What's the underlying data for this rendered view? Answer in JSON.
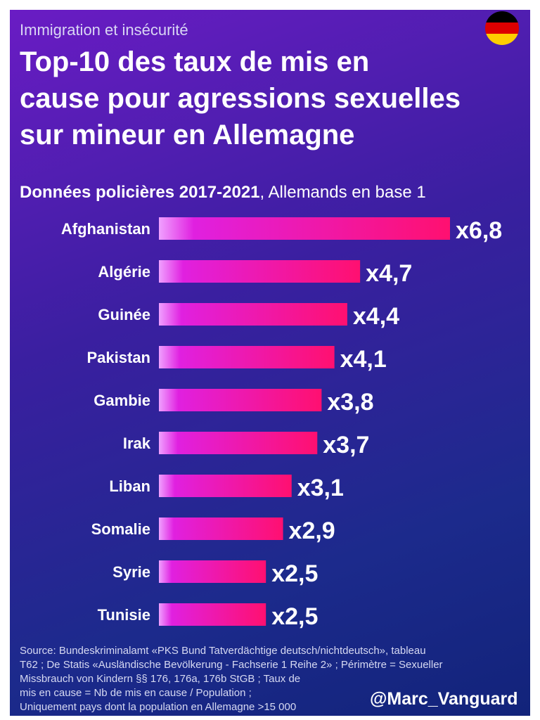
{
  "header": {
    "subtitle": "Immigration et insécurité",
    "title_lines": [
      "Top-10 des taux de mis en",
      "cause pour agressions sexuelles",
      "sur mineur en Allemagne"
    ],
    "data_label_bold": "Données policières 2017-2021",
    "data_label_rest": ", Allemands en base 1",
    "flag_icon": "germany-flag-icon",
    "flag_colors": [
      "#000000",
      "#dd0000",
      "#ffce00"
    ]
  },
  "chart_data": {
    "type": "bar",
    "orientation": "horizontal",
    "title": "Top-10 des taux de mis en cause pour agressions sexuelles sur mineur en Allemagne",
    "categories": [
      "Afghanistan",
      "Algérie",
      "Guinée",
      "Pakistan",
      "Gambie",
      "Irak",
      "Liban",
      "Somalie",
      "Syrie",
      "Tunisie"
    ],
    "values": [
      6.8,
      4.7,
      4.4,
      4.1,
      3.8,
      3.7,
      3.1,
      2.9,
      2.5,
      2.5
    ],
    "value_labels": [
      "x6,8",
      "x4,7",
      "x4,4",
      "x4,1",
      "x3,8",
      "x3,7",
      "x3,1",
      "x2,9",
      "x2,5",
      "x2,5"
    ],
    "xlim": [
      0,
      6.8
    ],
    "grid": false,
    "bar_gradient": [
      "#f0a0ff",
      "#e020e0",
      "#ff1070"
    ]
  },
  "footer": {
    "footnote_lines": [
      "Source: Bundeskriminalamt «PKS Bund Tatverdächtige deutsch/nichtdeutsch», tableau",
      "T62 ; De Statis «Ausländische Bevölkerung - Fachserie 1 Reihe 2» ; Périmètre = Sexueller",
      "Missbrauch von Kindern §§ 176, 176a, 176b StGB ; Taux de",
      "mis en cause = Nb de mis en cause / Population ;",
      "Uniquement pays dont la population en Allemagne >15 000"
    ],
    "handle": "@Marc_Vanguard"
  }
}
